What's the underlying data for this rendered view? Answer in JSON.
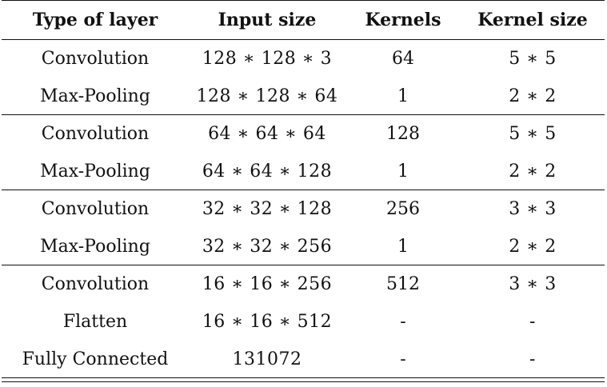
{
  "table": {
    "headers": [
      "Type of layer",
      "Input size",
      "Kernels",
      "Kernel size"
    ],
    "rows": [
      [
        "Convolution",
        "128 ∗ 128 ∗ 3",
        "64",
        "5 ∗ 5"
      ],
      [
        "Max-Pooling",
        "128 ∗ 128 ∗ 64",
        "1",
        "2 ∗ 2"
      ],
      [
        "Convolution",
        "64 ∗ 64 ∗ 64",
        "128",
        "5 ∗ 5"
      ],
      [
        "Max-Pooling",
        "64 ∗ 64 ∗ 128",
        "1",
        "2 ∗ 2"
      ],
      [
        "Convolution",
        "32 ∗ 32 ∗ 128",
        "256",
        "3 ∗ 3"
      ],
      [
        "Max-Pooling",
        "32 ∗ 32 ∗ 256",
        "1",
        "2 ∗ 2"
      ],
      [
        "Convolution",
        "16 ∗ 16 ∗ 256",
        "512",
        "3 ∗ 3"
      ],
      [
        "Flatten",
        "16 ∗ 16 ∗ 512",
        "-",
        "-"
      ],
      [
        "Fully Connected",
        "131072",
        "-",
        "-"
      ]
    ]
  }
}
